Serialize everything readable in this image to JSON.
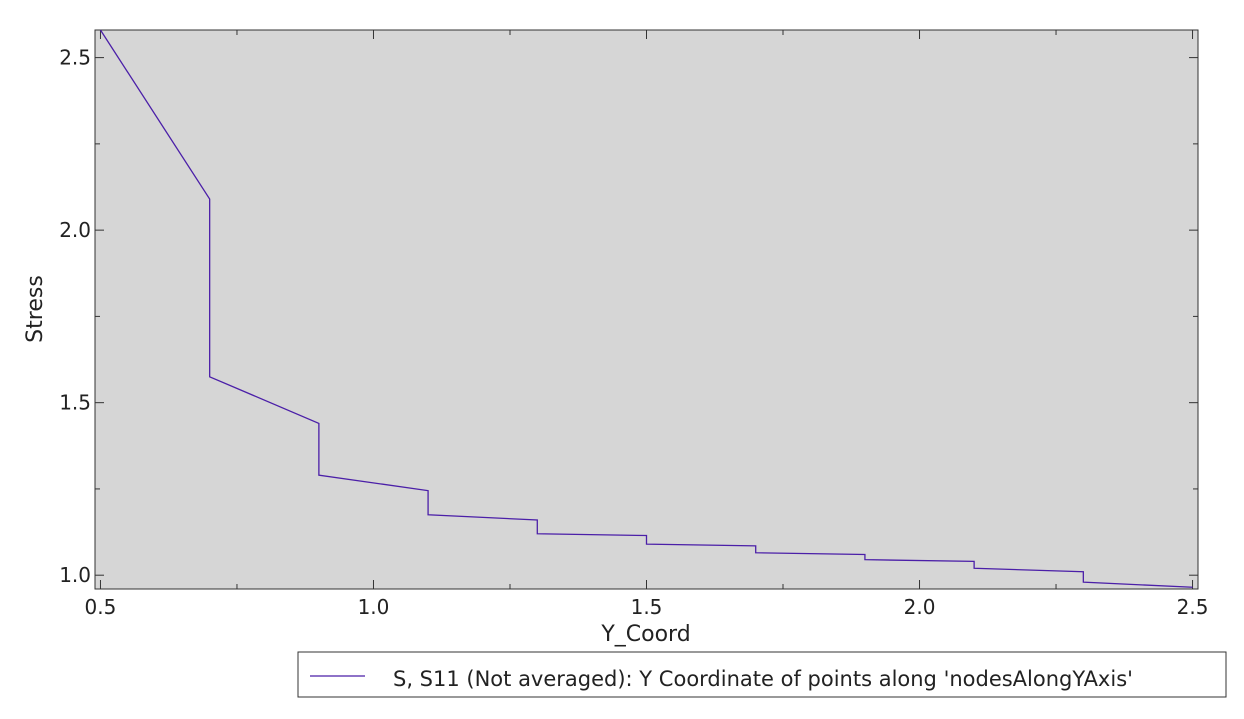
{
  "chart_data": {
    "type": "line",
    "title": "",
    "xlabel": "Y_Coord",
    "ylabel": "Stress",
    "xlim": [
      0.49,
      2.51
    ],
    "ylim": [
      0.96,
      2.58
    ],
    "grid": false,
    "legend_position": "bottom-right",
    "xticks": [
      0.5,
      1.0,
      1.5,
      2.0,
      2.5
    ],
    "xtick_labels": [
      "0.5",
      "1.0",
      "1.5",
      "2.0",
      "2.5"
    ],
    "yticks": [
      1.0,
      1.5,
      2.0,
      2.5
    ],
    "ytick_labels": [
      "1.0",
      "1.5",
      "2.0",
      "2.5"
    ],
    "series": [
      {
        "name": "S, S11 (Not averaged): Y Coordinate of points along 'nodesAlongYAxis'",
        "color": "#4b1fa8",
        "x": [
          0.5,
          0.7,
          0.7,
          0.9,
          0.9,
          1.1,
          1.1,
          1.3,
          1.3,
          1.5,
          1.5,
          1.7,
          1.7,
          1.9,
          1.9,
          2.1,
          2.1,
          2.3,
          2.3,
          2.5
        ],
        "y": [
          2.58,
          2.09,
          1.575,
          1.44,
          1.29,
          1.245,
          1.175,
          1.16,
          1.12,
          1.115,
          1.09,
          1.085,
          1.065,
          1.06,
          1.045,
          1.04,
          1.02,
          1.01,
          0.98,
          0.965
        ]
      }
    ]
  },
  "colors": {
    "plot_background": "#d6d6d6",
    "axis": "#333333"
  }
}
